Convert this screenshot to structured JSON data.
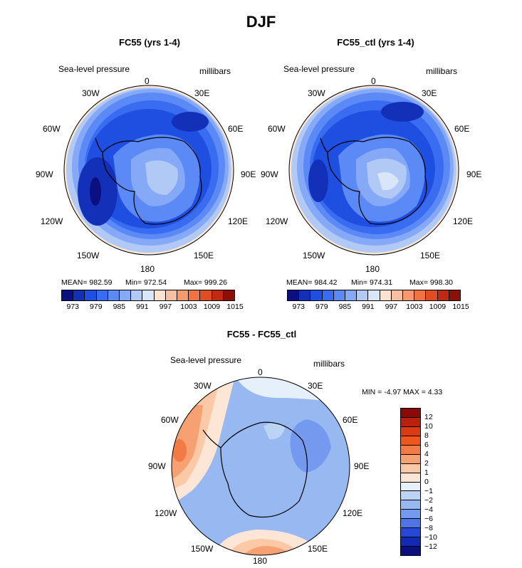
{
  "title": "DJF",
  "panels": {
    "top_left": {
      "title": "FC55 (yrs 1-4)",
      "variable": "Sea-level pressure",
      "units": "millibars",
      "mean": "MEAN= 982.59",
      "min": "Min= 972.54",
      "max": "Max= 999.26"
    },
    "top_right": {
      "title": "FC55_ctl (yrs 1-4)",
      "variable": "Sea-level pressure",
      "units": "millibars",
      "mean": "MEAN= 984.42",
      "min": "Min= 974.31",
      "max": "Max= 998.30"
    },
    "bottom": {
      "title": "FC55 - FC55_ctl",
      "variable": "Sea-level pressure",
      "units": "millibars",
      "minmax": "MIN =   -4.97 MAX =    4.33"
    }
  },
  "longitude_labels": {
    "lon_0": "0",
    "lon_30e": "30E",
    "lon_60e": "60E",
    "lon_90e": "90E",
    "lon_120e": "120E",
    "lon_150e": "150E",
    "lon_180": "180",
    "lon_150w": "150W",
    "lon_120w": "120W",
    "lon_90w": "90W",
    "lon_60w": "60W",
    "lon_30w": "30W"
  },
  "abs_colorbar": {
    "colors": [
      "#0b0f7f",
      "#1330b8",
      "#1e4fe0",
      "#3a6cf2",
      "#5b8af7",
      "#86a9f7",
      "#b0c9f5",
      "#d9e6fa",
      "#fde3cf",
      "#f8c0a0",
      "#f59a6e",
      "#f07443",
      "#e04d22",
      "#c02a12",
      "#8c1008"
    ],
    "tick_labels": [
      "973",
      "979",
      "985",
      "991",
      "997",
      "1003",
      "1009",
      "1015"
    ]
  },
  "diff_colorbar": {
    "colors": [
      "#8a0a0a",
      "#b8200f",
      "#dc3a12",
      "#ee561c",
      "#f37a44",
      "#f7a072",
      "#fbc9a6",
      "#fde6d6",
      "#e6f0fb",
      "#bcd4f4",
      "#98b8f2",
      "#7599ee",
      "#4e74e6",
      "#2748d6",
      "#122ab0",
      "#0b0f7f"
    ],
    "tick_labels": [
      "12",
      "10",
      "8",
      "6",
      "4",
      "2",
      "1",
      "0",
      "−1",
      "−2",
      "−4",
      "−6",
      "−8",
      "−10",
      "−12"
    ]
  }
}
